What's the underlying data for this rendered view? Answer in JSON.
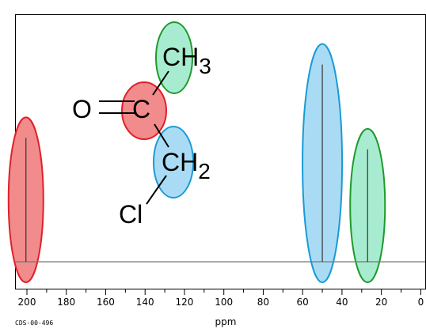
{
  "chart_data": {
    "type": "line",
    "title": "",
    "xlabel": "ppm",
    "ylabel": "",
    "xlim": [
      0,
      210
    ],
    "x_reversed": true,
    "x_ticks": [
      200,
      180,
      160,
      140,
      120,
      100,
      80,
      60,
      40,
      20,
      0
    ],
    "x_minor_step": 10,
    "grid": false,
    "peaks": [
      {
        "ppm": 200.5,
        "height": 0.54,
        "highlight": "red",
        "assignment": "C=O"
      },
      {
        "ppm": 50.0,
        "height": 0.86,
        "highlight": "blue",
        "assignment": "CH2"
      },
      {
        "ppm": 27.0,
        "height": 0.49,
        "highlight": "green",
        "assignment": "CH3"
      }
    ]
  },
  "highlight_colors": {
    "red": {
      "fill": "#f28b8b",
      "stroke": "#e0202a"
    },
    "blue": {
      "fill": "#a9dcf4",
      "stroke": "#1a9ad6"
    },
    "green": {
      "fill": "#a7ecd0",
      "stroke": "#1f9a2c"
    }
  },
  "molecule": {
    "atoms": [
      "O",
      "C",
      "C",
      "C",
      "Cl"
    ],
    "ch3_label": "CH",
    "ch3_sub": "3",
    "ch2_label": "CH",
    "ch2_sub": "2"
  },
  "footer_id": "CDS-00-496"
}
